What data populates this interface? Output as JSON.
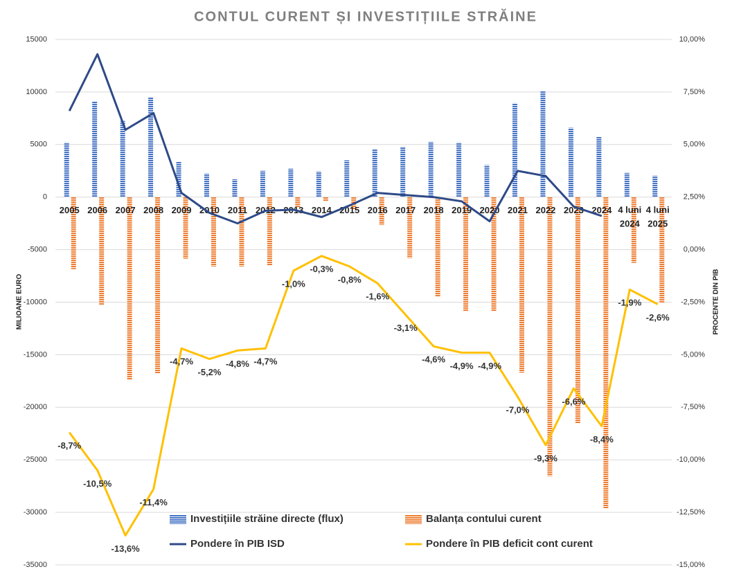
{
  "chart_data": {
    "type": "bar",
    "title": "CONTUL CURENT ȘI INVESTIȚIILE STRĂINE",
    "ylabel": "MILIOANE EURO",
    "y2label": "PROCENTE DIN PIB",
    "categories": [
      "2005",
      "2006",
      "2007",
      "2008",
      "2009",
      "2010",
      "2011",
      "2012",
      "2013",
      "2014",
      "2015",
      "2016",
      "2017",
      "2018",
      "2019",
      "2020",
      "2021",
      "2022",
      "2023",
      "2024",
      "4 luni 2024",
      "4 luni 2025"
    ],
    "ylim": [
      -35000,
      15000
    ],
    "yticks": [
      15000,
      10000,
      5000,
      0,
      -5000,
      -10000,
      -15000,
      -20000,
      -25000,
      -30000,
      -35000
    ],
    "y2lim": [
      -15,
      10
    ],
    "y2ticks": [
      {
        "value": 10,
        "label": "10,00%"
      },
      {
        "value": 7.5,
        "label": "7,50%"
      },
      {
        "value": 5,
        "label": "5,00%"
      },
      {
        "value": 2.5,
        "label": "2,50%"
      },
      {
        "value": 0,
        "label": "0,00%"
      },
      {
        "value": -2.5,
        "label": "-2,50%"
      },
      {
        "value": -5,
        "label": "-5,00%"
      },
      {
        "value": -7.5,
        "label": "-7,50%"
      },
      {
        "value": -10,
        "label": "-10,00%"
      },
      {
        "value": -12.5,
        "label": "-12,50%"
      },
      {
        "value": -15,
        "label": "-15,00%"
      }
    ],
    "grid": true,
    "legend": "bottom",
    "series": [
      {
        "name": "Investițiile străine directe (flux)",
        "type": "bar",
        "color": "#4472c4",
        "values": [
          5200,
          9100,
          7250,
          9500,
          3350,
          2250,
          1700,
          2500,
          2700,
          2450,
          3500,
          4550,
          4800,
          5250,
          5200,
          3050,
          8950,
          10100,
          6600,
          5750,
          2300,
          2050
        ]
      },
      {
        "name": "Balanța contului curent",
        "type": "bar",
        "color": "#ed7d31",
        "values": [
          -6850,
          -10250,
          -17350,
          -16800,
          -5850,
          -6600,
          -6600,
          -6500,
          -1000,
          -350,
          -1150,
          -2650,
          -5800,
          -9500,
          -10850,
          -10850,
          -16700,
          -26550,
          -21500,
          -29600,
          -6250,
          -10100
        ]
      },
      {
        "name": "Pondere în PIB ISD",
        "type": "line",
        "axis": "y2",
        "color": "#2e4a87",
        "values": [
          6.6,
          9.3,
          5.7,
          6.5,
          2.7,
          1.75,
          1.25,
          1.85,
          1.9,
          1.55,
          2.1,
          2.7,
          2.6,
          2.5,
          2.3,
          1.35,
          3.75,
          3.5,
          2.05,
          1.6,
          null,
          null
        ]
      },
      {
        "name": "Pondere în PIB deficit cont curent",
        "type": "line",
        "axis": "y2",
        "color": "#ffc000",
        "values": [
          -8.7,
          -10.5,
          -13.6,
          -11.4,
          -4.7,
          -5.2,
          -4.8,
          -4.7,
          -1.0,
          -0.3,
          -0.8,
          -1.6,
          -3.1,
          -4.6,
          -4.9,
          -4.9,
          -7.0,
          -9.3,
          -6.6,
          -8.4,
          -1.9,
          -2.6
        ],
        "value_labels": [
          "-8,7%",
          "-10,5%",
          "-13,6%",
          "-11,4%",
          "-4,7%",
          "-5,2%",
          "-4,8%",
          "-4,7%",
          "-1,0%",
          "-0,3%",
          "-0,8%",
          "-1,6%",
          "-3,1%",
          "-4,6%",
          "-4,9%",
          "-4,9%",
          "-7,0%",
          "-9,3%",
          "-6,6%",
          "-8,4%",
          "-1,9%",
          "-2,6%"
        ]
      }
    ]
  }
}
